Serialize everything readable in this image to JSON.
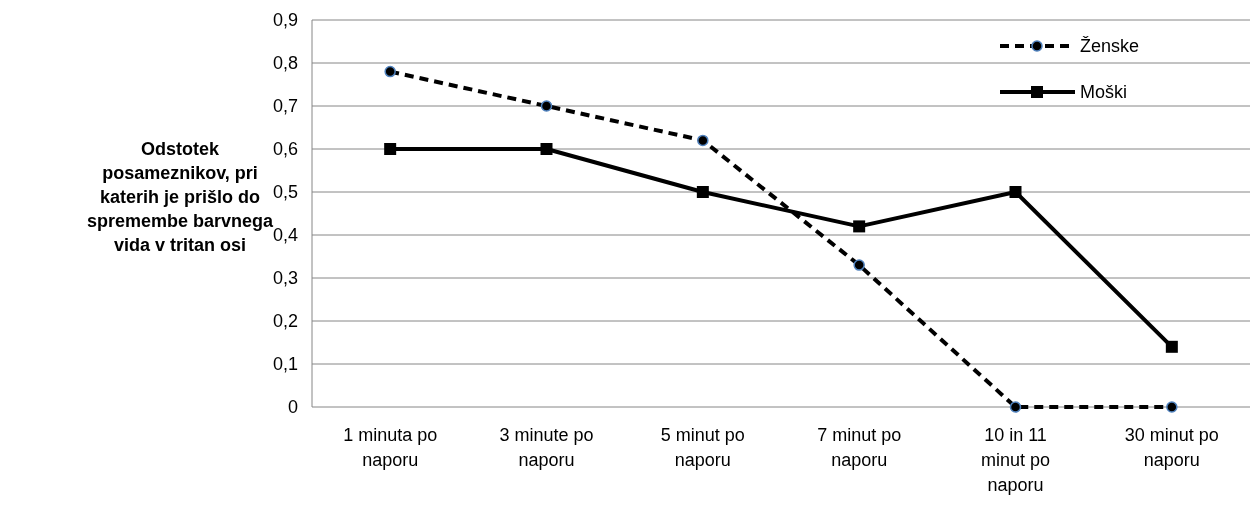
{
  "chart_data": {
    "type": "line",
    "ylabel": "Odstotek posameznikov, pri katerih je prišlo do spremembe barvnega vida v tritan osi",
    "categories": [
      "1 minuta po naporu",
      "3 minute po naporu",
      "5 minut po naporu",
      "7 minut po naporu",
      "10 in 11 minut po naporu",
      "30 minut po naporu"
    ],
    "series": [
      {
        "name": "Ženske",
        "color": "#000000",
        "values": [
          0.78,
          0.7,
          0.62,
          0.33,
          0,
          0
        ],
        "line_style": "dashed",
        "marker": "circle"
      },
      {
        "name": "Moški",
        "color": "#000000",
        "values": [
          0.6,
          0.6,
          0.5,
          0.42,
          0.5,
          0.14
        ],
        "line_style": "solid",
        "marker": "square"
      }
    ],
    "ylim": [
      0,
      0.9
    ],
    "yticks": [
      {
        "value": 0,
        "label": "0"
      },
      {
        "value": 0.1,
        "label": "0,1"
      },
      {
        "value": 0.2,
        "label": "0,2"
      },
      {
        "value": 0.3,
        "label": "0,3"
      },
      {
        "value": 0.4,
        "label": "0,4"
      },
      {
        "value": 0.5,
        "label": "0,5"
      },
      {
        "value": 0.6,
        "label": "0,6"
      },
      {
        "value": 0.7,
        "label": "0,7"
      },
      {
        "value": 0.8,
        "label": "0,8"
      },
      {
        "value": 0.9,
        "label": "0,9"
      }
    ],
    "grid": "y",
    "legend": "top right"
  }
}
